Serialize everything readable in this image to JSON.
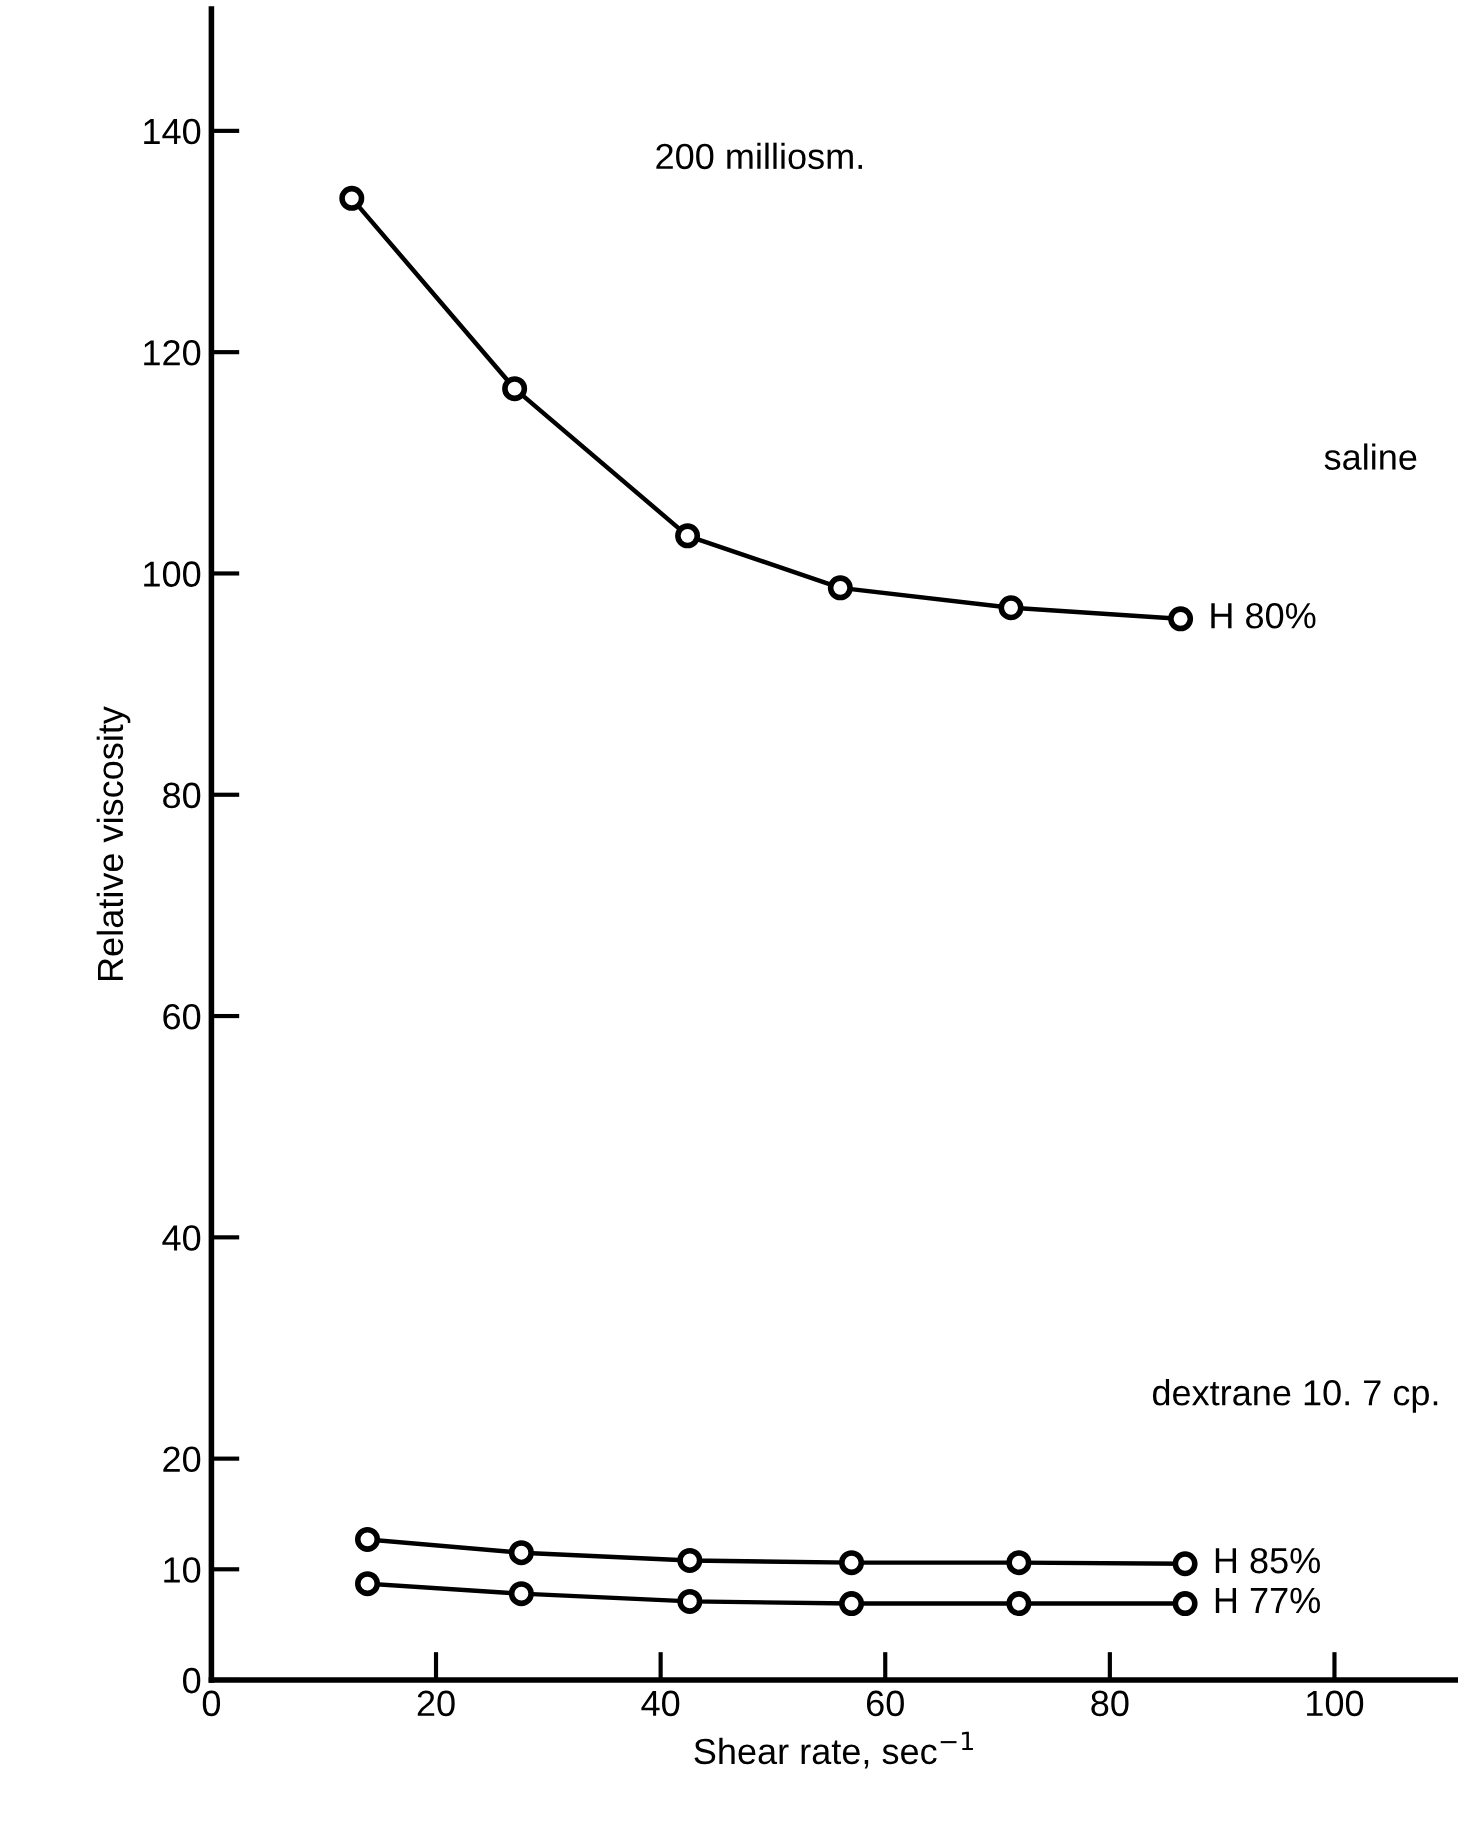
{
  "chart_data": {
    "type": "line",
    "xlabel": "Shear rate, sec$^{−1}$",
    "ylabel": "Relative viscosity",
    "series": [
      {
        "name": "H 80%",
        "color": "#000000",
        "x": [
          12.5,
          27,
          42.4,
          56,
          71.2,
          86.3
        ],
        "values": [
          133.9,
          116.7,
          103.4,
          98.7,
          96.9,
          95.9
        ]
      },
      {
        "name": "H 85%",
        "color": "#000000",
        "x": [
          13.9,
          27.6,
          42.6,
          57,
          71.9,
          86.7
        ],
        "values": [
          12.7,
          11.5,
          10.8,
          10.6,
          10.6,
          10.5
        ]
      },
      {
        "name": "H 77%",
        "color": "#000000",
        "x": [
          13.9,
          27.6,
          42.6,
          57,
          71.9,
          86.7
        ],
        "values": [
          8.7,
          7.8,
          7.1,
          6.9,
          6.9,
          6.9
        ]
      }
    ],
    "annotations": [
      "200 milliosm.",
      "saline",
      "dextrane 10. 7 cp."
    ],
    "xlim": [
      0,
      111
    ],
    "ylim": [
      0,
      151
    ],
    "xticks": [
      0,
      20,
      40,
      60,
      80,
      100
    ],
    "yticks": [
      0,
      10,
      20,
      40,
      60,
      80,
      100,
      120,
      140
    ],
    "marker": "circle",
    "line_style": "solid",
    "grid": false,
    "legend": false
  }
}
